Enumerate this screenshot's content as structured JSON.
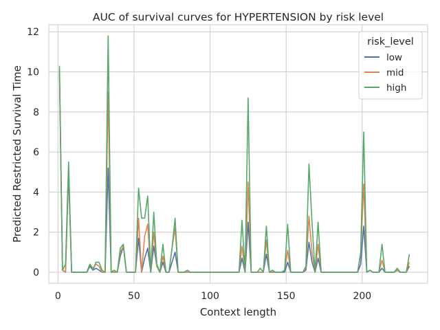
{
  "chart_data": {
    "type": "line",
    "title": "AUC of survival curves for HYPERTENSION by risk level",
    "xlabel": "Context length",
    "ylabel": "Predicted Restricted Survival Time",
    "xlim": [
      -6,
      243
    ],
    "ylim": [
      -0.55,
      12.35
    ],
    "xticks": [
      0,
      50,
      100,
      150,
      200
    ],
    "yticks": [
      0,
      2,
      4,
      6,
      8,
      10,
      12
    ],
    "grid": true,
    "legend": {
      "title": "risk_level",
      "placement": "top-right"
    },
    "x": [
      1,
      3,
      5,
      7,
      9,
      11,
      13,
      15,
      17,
      19,
      21,
      23,
      25,
      27,
      29,
      31,
      33,
      35,
      37,
      39,
      41,
      43,
      45,
      47,
      49,
      51,
      53,
      55,
      57,
      59,
      61,
      63,
      65,
      67,
      69,
      71,
      73,
      75,
      77,
      79,
      81,
      83,
      85,
      87,
      89,
      91,
      93,
      95,
      97,
      99,
      101,
      103,
      105,
      107,
      109,
      111,
      113,
      115,
      117,
      119,
      121,
      123,
      125,
      127,
      129,
      131,
      133,
      135,
      137,
      139,
      141,
      143,
      145,
      147,
      149,
      151,
      153,
      155,
      157,
      159,
      161,
      163,
      165,
      167,
      169,
      171,
      173,
      175,
      177,
      179,
      181,
      183,
      185,
      187,
      189,
      191,
      193,
      195,
      197,
      199,
      201,
      203,
      205,
      207,
      209,
      211,
      213,
      215,
      217,
      219,
      221,
      223,
      225,
      227,
      229,
      231
    ],
    "series": [
      {
        "name": "low",
        "color": "#4c72b0",
        "values": [
          9.9,
          0.1,
          0.0,
          4.9,
          0.0,
          0.0,
          0.0,
          0.0,
          0.0,
          0.0,
          0.3,
          0.1,
          0.2,
          0.1,
          0.0,
          0.0,
          5.2,
          0.0,
          0.0,
          0.0,
          0.8,
          1.3,
          0.0,
          0.0,
          0.0,
          0.0,
          1.7,
          0.0,
          0.7,
          1.2,
          0.0,
          1.3,
          0.3,
          0.0,
          0.5,
          0.0,
          0.0,
          0.5,
          1.0,
          0.0,
          0.0,
          0.0,
          0.0,
          0.0,
          0.0,
          0.0,
          0.0,
          0.0,
          0.0,
          0.0,
          0.0,
          0.0,
          0.0,
          0.0,
          0.0,
          0.0,
          0.0,
          0.0,
          0.0,
          0.0,
          0.7,
          0.0,
          2.5,
          0.0,
          0.0,
          0.0,
          0.0,
          0.0,
          0.9,
          0.0,
          0.0,
          0.0,
          0.0,
          0.0,
          0.0,
          0.5,
          0.0,
          0.0,
          0.0,
          0.0,
          0.0,
          0.1,
          1.5,
          0.5,
          0.0,
          0.7,
          0.0,
          0.0,
          0.0,
          0.0,
          0.0,
          0.0,
          0.0,
          0.0,
          0.0,
          0.0,
          0.0,
          0.0,
          0.0,
          0.4,
          2.3,
          0.0,
          0.1,
          0.0,
          0.0,
          0.0,
          0.2,
          0.0,
          0.0,
          0.0,
          0.0,
          0.1,
          0.0,
          0.0,
          0.0,
          0.3
        ]
      },
      {
        "name": "mid",
        "color": "#dd8452",
        "values": [
          10.1,
          0.1,
          0.0,
          5.3,
          0.0,
          0.0,
          0.0,
          0.0,
          0.0,
          0.0,
          0.4,
          0.2,
          0.4,
          0.3,
          0.0,
          0.0,
          9.0,
          0.0,
          0.0,
          0.0,
          1.0,
          1.3,
          0.0,
          0.0,
          0.0,
          0.0,
          2.7,
          0.0,
          1.8,
          2.4,
          0.0,
          2.0,
          0.3,
          0.0,
          0.8,
          0.0,
          0.0,
          1.2,
          2.2,
          0.0,
          0.0,
          0.0,
          0.0,
          0.0,
          0.0,
          0.0,
          0.0,
          0.0,
          0.0,
          0.0,
          0.0,
          0.0,
          0.0,
          0.0,
          0.0,
          0.0,
          0.0,
          0.0,
          0.0,
          0.0,
          1.3,
          0.0,
          4.5,
          0.0,
          0.0,
          0.0,
          0.0,
          0.0,
          1.6,
          0.0,
          0.0,
          0.0,
          0.0,
          0.0,
          0.1,
          1.1,
          0.0,
          0.0,
          0.0,
          0.0,
          0.0,
          0.2,
          2.8,
          1.0,
          0.0,
          1.4,
          0.0,
          0.0,
          0.0,
          0.0,
          0.0,
          0.0,
          0.0,
          0.0,
          0.0,
          0.0,
          0.0,
          0.0,
          0.0,
          0.9,
          4.4,
          0.0,
          0.1,
          0.0,
          0.0,
          0.0,
          0.6,
          0.0,
          0.0,
          0.0,
          0.0,
          0.1,
          0.0,
          0.0,
          0.0,
          0.5
        ]
      },
      {
        "name": "high",
        "color": "#55a868",
        "values": [
          10.3,
          0.1,
          0.4,
          5.5,
          0.0,
          0.0,
          0.0,
          0.0,
          0.0,
          0.0,
          0.4,
          0.1,
          0.5,
          0.5,
          0.1,
          0.0,
          11.8,
          0.0,
          0.1,
          0.0,
          1.2,
          1.4,
          0.0,
          0.0,
          0.0,
          0.0,
          4.2,
          2.7,
          2.7,
          3.8,
          0.0,
          3.0,
          0.4,
          0.0,
          1.4,
          0.0,
          0.0,
          1.2,
          2.7,
          0.0,
          0.0,
          0.0,
          0.1,
          0.0,
          0.0,
          0.0,
          0.0,
          0.0,
          0.0,
          0.0,
          0.0,
          0.0,
          0.0,
          0.0,
          0.0,
          0.0,
          0.0,
          0.0,
          0.0,
          0.0,
          2.6,
          0.0,
          8.7,
          0.0,
          0.0,
          0.0,
          0.2,
          0.0,
          2.3,
          0.0,
          0.1,
          0.0,
          0.0,
          0.0,
          0.1,
          2.4,
          0.0,
          0.0,
          0.0,
          0.0,
          0.0,
          0.3,
          5.4,
          2.5,
          0.0,
          2.5,
          0.0,
          0.0,
          0.0,
          0.0,
          0.0,
          0.0,
          0.0,
          0.0,
          0.0,
          0.0,
          0.0,
          0.0,
          0.0,
          1.0,
          7.0,
          0.0,
          0.1,
          0.0,
          0.0,
          0.0,
          1.4,
          0.0,
          0.0,
          0.0,
          0.0,
          0.2,
          0.0,
          0.0,
          0.0,
          0.9
        ]
      }
    ]
  }
}
